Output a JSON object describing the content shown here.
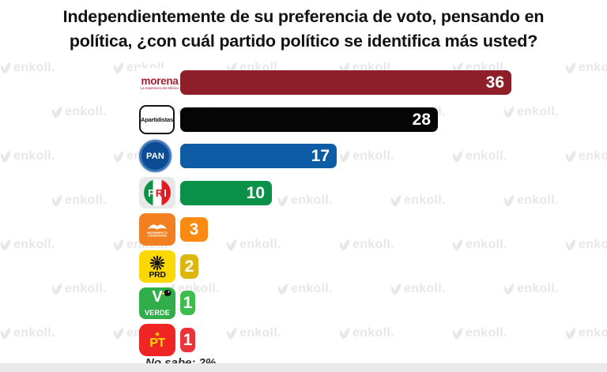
{
  "title": {
    "line1": "Independientemente de su preferencia de voto, pensando en",
    "line2": "política, ¿con cuál partido político se identifica más usted?"
  },
  "watermark": {
    "text": "enkoll."
  },
  "footnote": "No sabe: 2%",
  "chart_data": {
    "type": "bar",
    "orientation": "horizontal",
    "title": "Independientemente de su preferencia de voto, pensando en política, ¿con cuál partido político se identifica más usted?",
    "unit": "percent",
    "xlim": [
      0,
      36
    ],
    "grid": false,
    "legend": false,
    "footnote": "No sabe: 2%",
    "categories": [
      "Morena",
      "Apartidistas",
      "PAN",
      "PRI",
      "Movimiento Ciudadano",
      "PRD",
      "Partido Verde",
      "PT"
    ],
    "values": [
      36,
      28,
      17,
      10,
      3,
      2,
      1,
      1
    ],
    "parties": [
      {
        "name": "Morena",
        "value": 36,
        "bar_color": "#8e1e28",
        "logo_text": "morena",
        "logo_subtitle": "La esperanza de México"
      },
      {
        "name": "Apartidistas",
        "value": 28,
        "bar_color": "#050505",
        "logo_text": "Apartidistas"
      },
      {
        "name": "PAN",
        "value": 17,
        "bar_color": "#0d5ca5",
        "logo_text": "PAN"
      },
      {
        "name": "PRI",
        "value": 10,
        "bar_color": "#0a9148",
        "logo_text": "PRI",
        "letters": [
          "P",
          "R",
          "I"
        ]
      },
      {
        "name": "Movimiento Ciudadano",
        "value": 3,
        "bar_color": "#fb8a12",
        "logo_line1": "MOVIMIENTO",
        "logo_line2": "CIUDADANO"
      },
      {
        "name": "PRD",
        "value": 2,
        "bar_color": "#ddb60e",
        "logo_text": "PRD"
      },
      {
        "name": "Partido Verde",
        "value": 1,
        "bar_color": "#3dbd4e",
        "logo_text": "VERDE"
      },
      {
        "name": "PT",
        "value": 1,
        "bar_color": "#e8343a",
        "logo_text": "PT",
        "logo_star": "★"
      }
    ]
  }
}
